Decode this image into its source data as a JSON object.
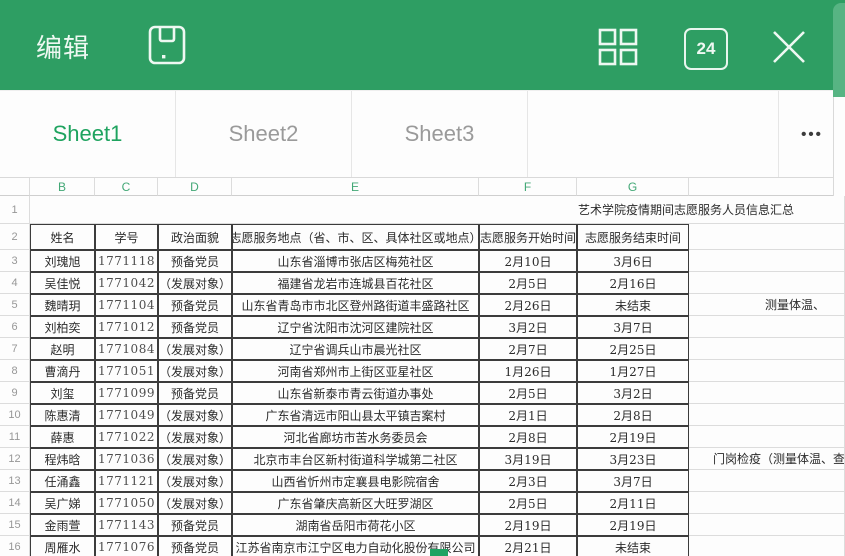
{
  "topbar": {
    "title": "编辑",
    "badge": "24",
    "icons": [
      "save-icon",
      "grid-view-icon",
      "badge-24-icon",
      "close-icon"
    ]
  },
  "tabs": [
    {
      "label": "Sheet1",
      "active": true
    },
    {
      "label": "Sheet2",
      "active": false
    },
    {
      "label": "Sheet3",
      "active": false
    }
  ],
  "more_label": "•••",
  "sheet": {
    "column_letters": [
      "B",
      "C",
      "D",
      "E",
      "F",
      "G"
    ],
    "title_row": {
      "number": "1",
      "title": "艺术学院疫情期间志愿服务人员信息汇总"
    },
    "header_row": {
      "number": "2",
      "cells": [
        "姓名",
        "学号",
        "政治面貌",
        "志愿服务地点（省、市、区、具体社区或地点）",
        "志愿服务开始时间",
        "志愿服务结束时间"
      ]
    },
    "rows": [
      {
        "number": "3",
        "name": "刘瑰旭",
        "student_id": "1771118",
        "status": "预备党员",
        "place": "山东省淄博市张店区梅苑社区",
        "start": "2月10日",
        "end": "3月6日",
        "note": ""
      },
      {
        "number": "4",
        "name": "吴佳悦",
        "student_id": "1771042",
        "status": "（发展对象）",
        "place": "福建省龙岩市连城县百花社区",
        "start": "2月5日",
        "end": "2月16日",
        "note": ""
      },
      {
        "number": "5",
        "name": "魏晴玥",
        "student_id": "1771104",
        "status": "预备党员",
        "place": "山东省青岛市市北区登州路街道丰盛路社区",
        "start": "2月26日",
        "end": "未结束",
        "note": "测量体温、"
      },
      {
        "number": "6",
        "name": "刘柏奕",
        "student_id": "1771012",
        "status": "预备党员",
        "place": "辽宁省沈阳市沈河区建院社区",
        "start": "3月2日",
        "end": "3月7日",
        "note": ""
      },
      {
        "number": "7",
        "name": "赵明",
        "student_id": "1771084",
        "status": "（发展对象）",
        "place": "辽宁省调兵山市晨光社区",
        "start": "2月7日",
        "end": "2月25日",
        "note": ""
      },
      {
        "number": "8",
        "name": "曹滴丹",
        "student_id": "1771051",
        "status": "（发展对象）",
        "place": "河南省郑州市上街区亚星社区",
        "start": "1月26日",
        "end": "1月27日",
        "note": ""
      },
      {
        "number": "9",
        "name": "刘玺",
        "student_id": "1771099",
        "status": "预备党员",
        "place": "山东省新泰市青云街道办事处",
        "start": "2月5日",
        "end": "3月2日",
        "note": ""
      },
      {
        "number": "10",
        "name": "陈惠清",
        "student_id": "1771049",
        "status": "（发展对象）",
        "place": "广东省清远市阳山县太平镇吉案村",
        "start": "2月1日",
        "end": "2月8日",
        "note": ""
      },
      {
        "number": "11",
        "name": "薛惠",
        "student_id": "1771022",
        "status": "（发展对象）",
        "place": "河北省廊坊市苦水务委员会",
        "start": "2月8日",
        "end": "2月19日",
        "note": ""
      },
      {
        "number": "12",
        "name": "程炜晗",
        "student_id": "1771036",
        "status": "（发展对象）",
        "place": "北京市丰台区新村街道科学城第二社区",
        "start": "3月19日",
        "end": "3月23日",
        "note": "门岗检疫（测量体温、查"
      },
      {
        "number": "13",
        "name": "任涌鑫",
        "student_id": "1771121",
        "status": "（发展对象）",
        "place": "山西省忻州市定襄县电影院宿舍",
        "start": "2月3日",
        "end": "3月7日",
        "note": ""
      },
      {
        "number": "14",
        "name": "吴广娣",
        "student_id": "1771050",
        "status": "（发展对象）",
        "place": "广东省肇庆高新区大旺罗湖区",
        "start": "2月5日",
        "end": "2月11日",
        "note": ""
      },
      {
        "number": "15",
        "name": "金雨萱",
        "student_id": "1771143",
        "status": "预备党员",
        "place": "湖南省岳阳市荷花小区",
        "start": "2月19日",
        "end": "2月19日",
        "note": ""
      },
      {
        "number": "16",
        "name": "周雁水",
        "student_id": "1771076",
        "status": "预备党员",
        "place": "江苏省南京市江宁区电力自动化股份有限公司",
        "start": "2月21日",
        "end": "未结束",
        "note": ""
      }
    ]
  },
  "colors": {
    "toolbar_green": "#2e9e63",
    "strip_green": "#57b483",
    "active_tab_green": "#1ea35f",
    "column_letter_green": "#43a876",
    "table_border_dark": "#3c3c3c",
    "gridline": "#dcdcdc",
    "selection_handle": "#1fa362"
  }
}
